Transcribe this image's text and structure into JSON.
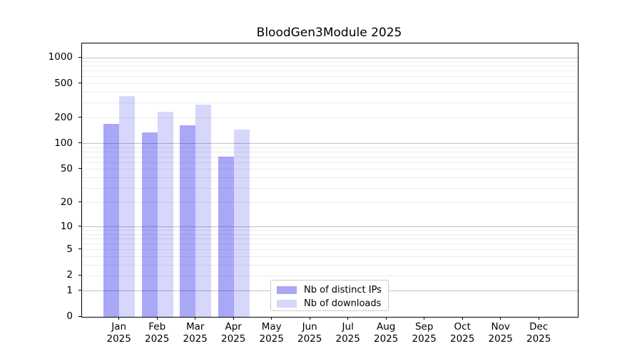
{
  "chart_data": {
    "type": "bar",
    "title": "BloodGen3Module 2025",
    "categories": [
      "Jan",
      "Feb",
      "Mar",
      "Apr",
      "May",
      "Jun",
      "Jul",
      "Aug",
      "Sep",
      "Oct",
      "Nov",
      "Dec"
    ],
    "x_tick_second_line": "2025",
    "series": [
      {
        "name": "Nb of distinct IPs",
        "color": "#0606e6",
        "alpha": 0.35,
        "values": [
          170,
          136,
          163,
          71,
          0,
          0,
          0,
          0,
          0,
          0,
          0,
          0
        ]
      },
      {
        "name": "Nb of downloads",
        "color": "#0606e6",
        "alpha": 0.16,
        "values": [
          360,
          234,
          283,
          145,
          0,
          0,
          0,
          0,
          0,
          0,
          0,
          0
        ]
      }
    ],
    "xlabel": "",
    "ylabel": "",
    "y_axis": {
      "scale": "log1p",
      "ticks": [
        1000,
        500,
        200,
        100,
        50,
        20,
        10,
        5,
        2,
        1,
        0
      ],
      "ylim": [
        0,
        1465
      ]
    },
    "grid": {
      "enabled": true,
      "major_color": "#c2c2c2",
      "minor_color": "#ebebeb"
    },
    "legend": {
      "position": "lower center",
      "entries": [
        "Nb of distinct IPs",
        "Nb of downloads"
      ]
    },
    "axis_color": "#000000",
    "background_color": "#ffffff"
  }
}
